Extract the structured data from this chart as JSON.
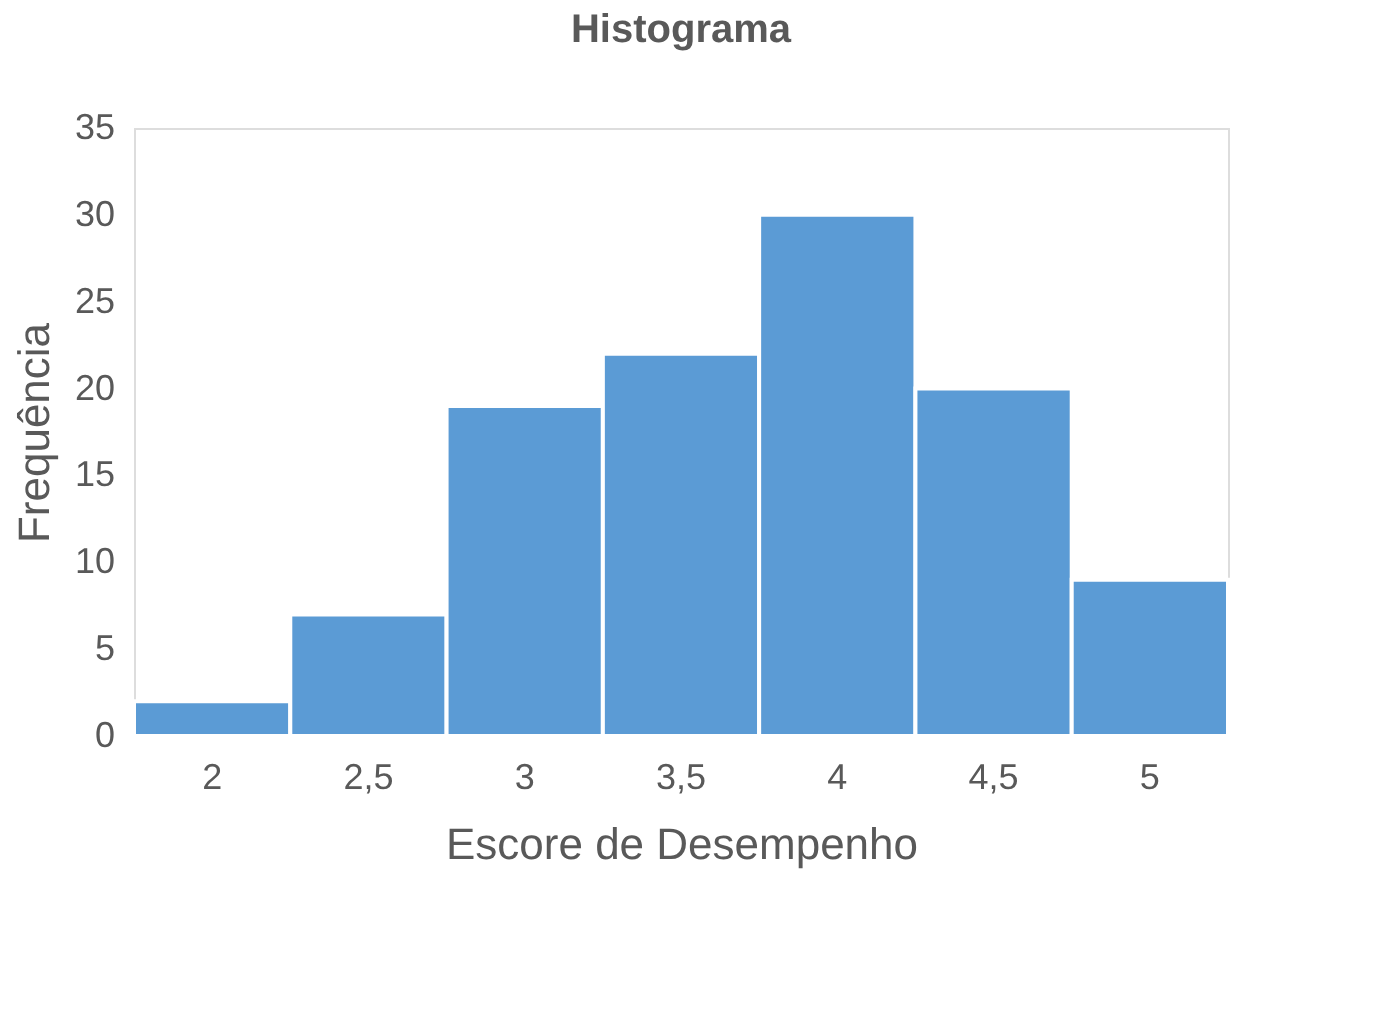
{
  "chart_data": {
    "type": "bar",
    "title": "Histograma",
    "xlabel": "Escore de Desempenho",
    "ylabel": "Frequência",
    "categories": [
      "2",
      "2,5",
      "3",
      "3,5",
      "4",
      "4,5",
      "5"
    ],
    "values": [
      2,
      7,
      19,
      22,
      30,
      20,
      9
    ],
    "color": "#5b9bd5",
    "ylim": [
      0,
      35
    ],
    "yticks": [
      0,
      5,
      10,
      15,
      20,
      25,
      30,
      35
    ],
    "grid": false
  }
}
